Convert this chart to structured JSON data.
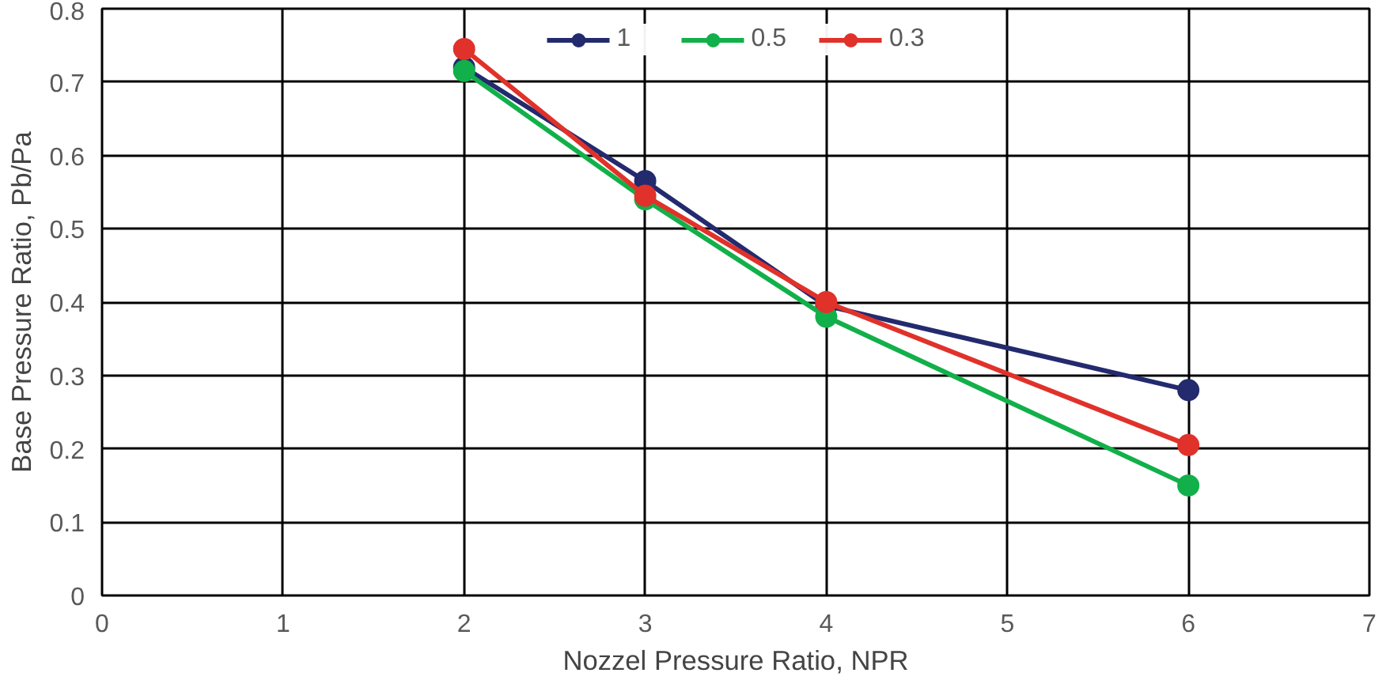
{
  "chart_data": {
    "type": "line",
    "xlabel": "Nozzel Pressure Ratio, NPR",
    "ylabel": "Base Pressure Ratio, Pb/Pa",
    "xlim": [
      0,
      7
    ],
    "xticks": [
      0,
      1,
      2,
      3,
      4,
      5,
      6,
      7
    ],
    "ylim": [
      0,
      0.8
    ],
    "yticks": [
      0,
      0.1,
      0.2,
      0.3,
      0.4,
      0.5,
      0.6,
      0.7,
      0.8
    ],
    "grid": true,
    "legend": "top",
    "marker": "circle",
    "line_style": "solid",
    "x": [
      2,
      3,
      4,
      6
    ],
    "series": [
      {
        "name": "1",
        "color": "#232a6e",
        "values": [
          0.72,
          0.565,
          0.395,
          0.28
        ]
      },
      {
        "name": "0.5",
        "color": "#12b04a",
        "values": [
          0.715,
          0.54,
          0.38,
          0.15
        ]
      },
      {
        "name": "0.3",
        "color": "#e0322a",
        "values": [
          0.745,
          0.545,
          0.4,
          0.205
        ]
      }
    ]
  }
}
